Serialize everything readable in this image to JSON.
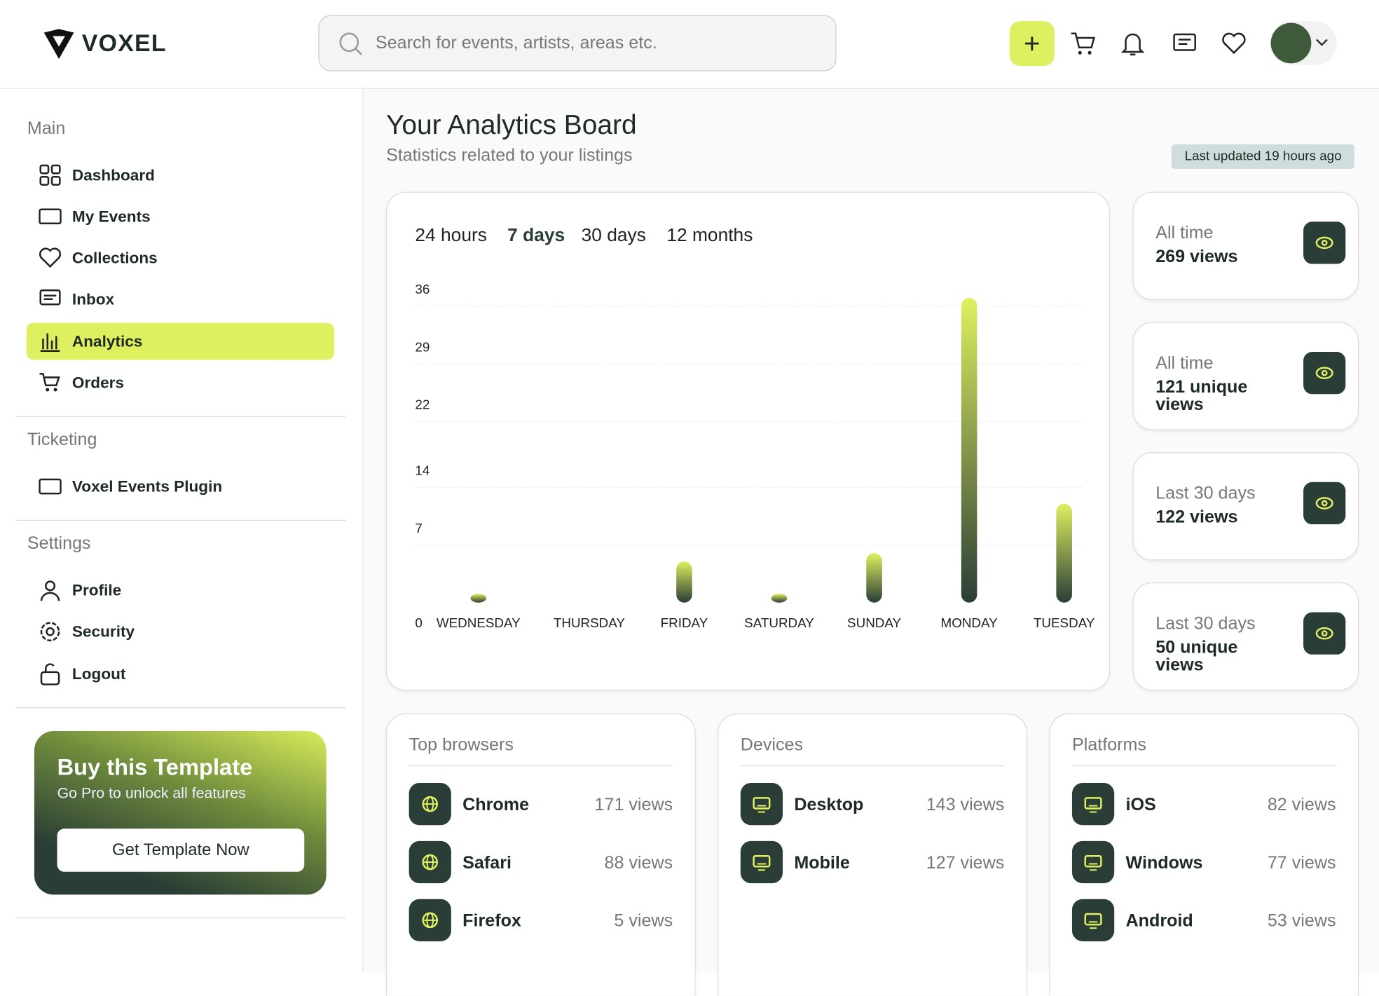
{
  "header": {
    "brand": "VOXEL",
    "search_placeholder": "Search for events, artists, areas etc."
  },
  "sidebar": {
    "sections": [
      {
        "title": "Main",
        "items": [
          "Dashboard",
          "My Events",
          "Collections",
          "Inbox",
          "Analytics",
          "Orders"
        ]
      },
      {
        "title": "Ticketing",
        "items": [
          "Voxel Events Plugin"
        ]
      },
      {
        "title": "Settings",
        "items": [
          "Profile",
          "Security",
          "Logout"
        ]
      }
    ]
  },
  "promo": {
    "title": "Buy this Template",
    "subtitle": "Go Pro to unlock all features",
    "button": "Get Template Now"
  },
  "main": {
    "title": "Your Analytics Board",
    "subtitle": "Statistics related to your listings",
    "updated": "Last updated 19 hours ago"
  },
  "chart_data": {
    "type": "bar",
    "tabs": [
      "24 hours",
      "7 days",
      "30 days",
      "12 months"
    ],
    "categories": [
      "WEDNESDAY",
      "THURSDAY",
      "FRIDAY",
      "SATURDAY",
      "SUNDAY",
      "MONDAY",
      "TUESDAY"
    ],
    "values": [
      1,
      0,
      5,
      1,
      6,
      37,
      12
    ],
    "ylim": [
      0,
      37
    ],
    "yticks": [
      0,
      7,
      14,
      22,
      29,
      36
    ],
    "grid": true
  },
  "stats": [
    {
      "label": "All time",
      "value": "269 views"
    },
    {
      "label": "All time",
      "value": "121 unique views"
    },
    {
      "label": "Last 30 days",
      "value": "122 views"
    },
    {
      "label": "Last 30 days",
      "value": "50 unique views"
    }
  ],
  "panels": [
    {
      "title": "Top browsers",
      "rows": [
        {
          "name": "Chrome",
          "views": "171 views"
        },
        {
          "name": "Safari",
          "views": "88 views"
        },
        {
          "name": "Firefox",
          "views": "5 views"
        }
      ]
    },
    {
      "title": "Devices",
      "rows": [
        {
          "name": "Desktop",
          "views": "143 views"
        },
        {
          "name": "Mobile",
          "views": "127 views"
        }
      ]
    },
    {
      "title": "Platforms",
      "rows": [
        {
          "name": "iOS",
          "views": "82 views"
        },
        {
          "name": "Windows",
          "views": "77 views"
        },
        {
          "name": "Android",
          "views": "53 views"
        }
      ]
    }
  ]
}
